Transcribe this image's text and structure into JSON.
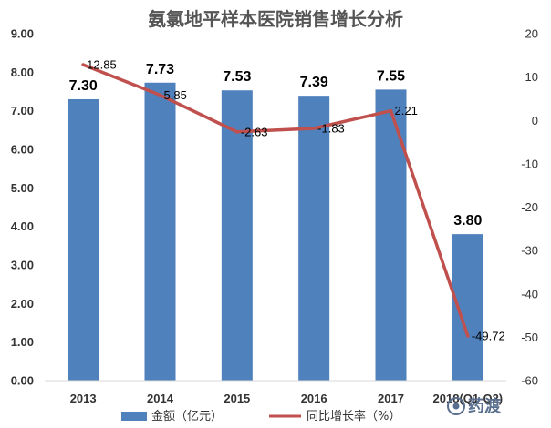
{
  "chart_data": {
    "type": "bar",
    "title": "氨氯地平样本医院销售增长分析",
    "categories": [
      "2013",
      "2014",
      "2015",
      "2016",
      "2017",
      "2018(Q1-Q2)"
    ],
    "series": [
      {
        "name": "金额（亿元）",
        "type": "bar",
        "axis": "left",
        "color": "#4f81bd",
        "values": [
          7.3,
          7.73,
          7.53,
          7.39,
          7.55,
          3.8
        ],
        "labels": [
          "7.30",
          "7.73",
          "7.53",
          "7.39",
          "7.55",
          "3.80"
        ]
      },
      {
        "name": "同比增长率（%）",
        "type": "line",
        "axis": "right",
        "color": "#c0504d",
        "values": [
          12.85,
          5.85,
          -2.63,
          -1.83,
          2.21,
          -49.72
        ],
        "labels": [
          "12.85",
          "5.85",
          "-2.63",
          "-1.83",
          "2.21",
          "-49.72"
        ]
      }
    ],
    "y_left": {
      "range": [
        0,
        9
      ],
      "ticks": [
        "0.00",
        "1.00",
        "2.00",
        "3.00",
        "4.00",
        "5.00",
        "6.00",
        "7.00",
        "8.00",
        "9.00"
      ]
    },
    "y_right": {
      "range": [
        -60,
        20
      ],
      "ticks": [
        "-60",
        "-50",
        "-40",
        "-30",
        "-20",
        "-10",
        "0",
        "10",
        "20"
      ]
    },
    "grid": false,
    "legend": "bottom"
  },
  "watermark": {
    "icon": "yaodu-logo-icon",
    "text": "药渡"
  }
}
